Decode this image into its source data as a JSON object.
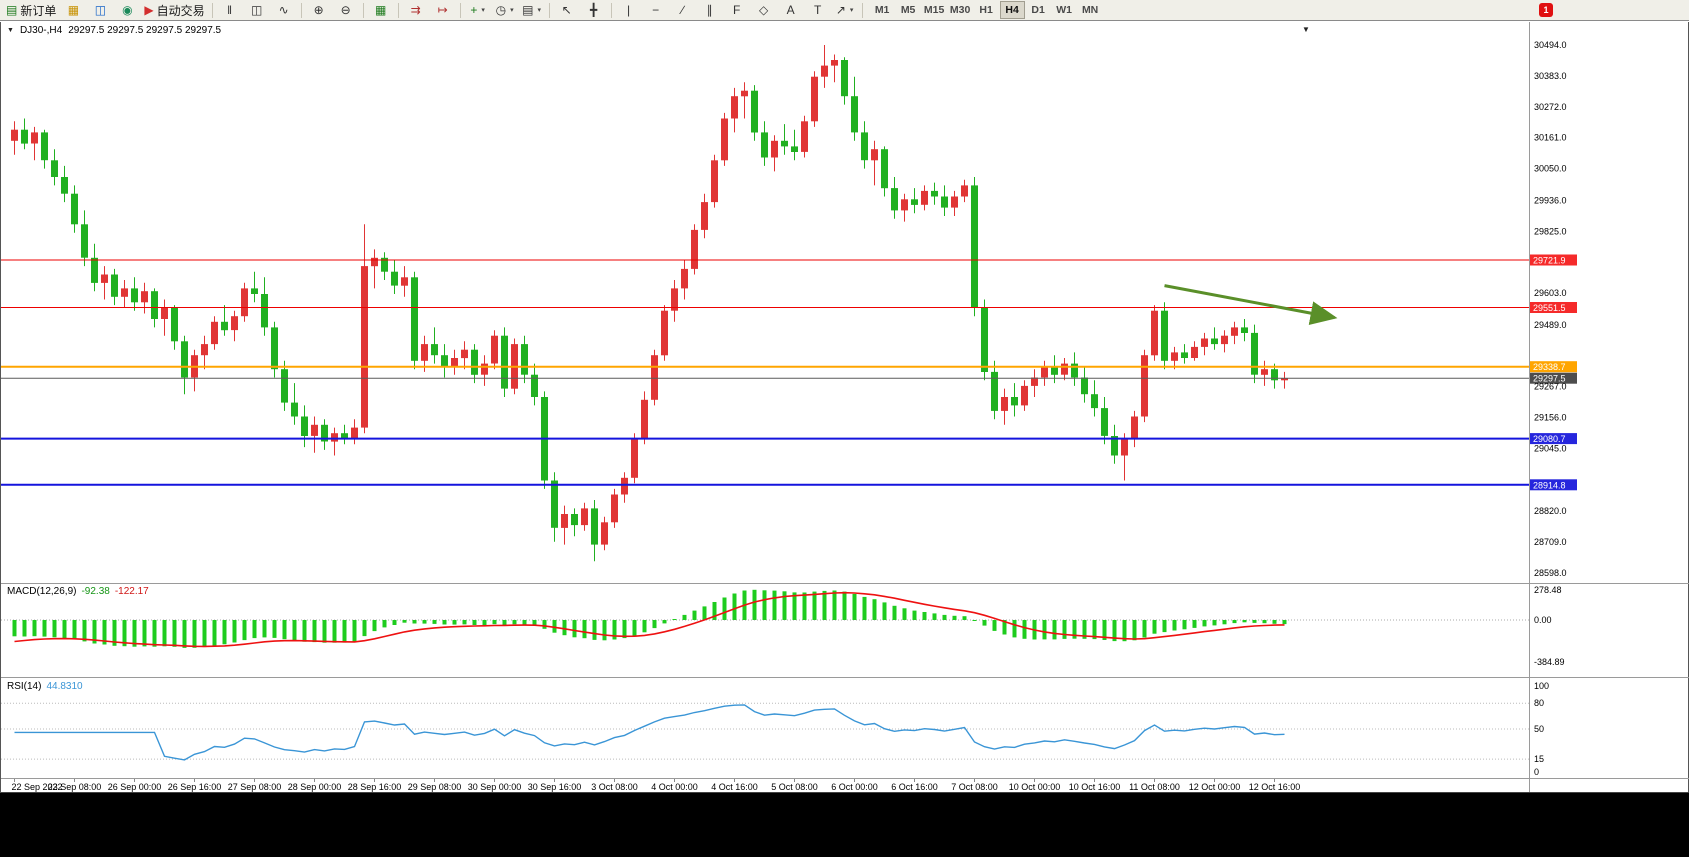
{
  "toolbar": {
    "items": [
      {
        "name": "new-order-button",
        "glyph": "▤",
        "color": "#1b7a1b",
        "label": "新订单"
      },
      {
        "name": "market-depth-icon",
        "glyph": "▦",
        "color": "#c79100"
      },
      {
        "name": "data-window-icon",
        "glyph": "◫",
        "color": "#1663c7"
      },
      {
        "name": "strategy-tester-icon",
        "glyph": "◉",
        "color": "#1b8a5a"
      },
      {
        "name": "auto-trading-button",
        "glyph": "▶",
        "color": "#d32f2f",
        "label": "自动交易"
      },
      {
        "sep": true
      },
      {
        "name": "bar-chart-icon",
        "glyph": "‖",
        "color": "#333333"
      },
      {
        "name": "candlestick-chart-icon",
        "glyph": "◫",
        "color": "#333333"
      },
      {
        "name": "line-chart-icon",
        "glyph": "∿",
        "color": "#333333"
      },
      {
        "sep": true
      },
      {
        "name": "zoom-in-icon",
        "glyph": "⊕",
        "color": "#333333"
      },
      {
        "name": "zoom-out-icon",
        "glyph": "⊖",
        "color": "#333333"
      },
      {
        "sep": true
      },
      {
        "name": "tile-windows-icon",
        "glyph": "▦",
        "color": "#1b7a1b"
      },
      {
        "sep": true
      },
      {
        "name": "auto-scroll-icon",
        "glyph": "⇉",
        "color": "#b03030"
      },
      {
        "name": "chart-shift-icon",
        "glyph": "↦",
        "color": "#b03030"
      },
      {
        "sep": true
      },
      {
        "name": "indicators-icon",
        "glyph": "+",
        "color": "#1b7a1b",
        "caret": true
      },
      {
        "name": "periods-icon",
        "glyph": "◷",
        "color": "#333333",
        "caret": true
      },
      {
        "name": "templates-icon",
        "glyph": "▤",
        "color": "#333333",
        "caret": true
      },
      {
        "sep": true
      },
      {
        "name": "cursor-icon",
        "glyph": "↖",
        "color": "#333333"
      },
      {
        "name": "crosshair-icon",
        "glyph": "╋",
        "color": "#333333"
      },
      {
        "sep": true
      },
      {
        "name": "vertical-line-icon",
        "glyph": "|",
        "color": "#333333"
      },
      {
        "name": "horizontal-line-icon",
        "glyph": "−",
        "color": "#333333"
      },
      {
        "name": "trendline-icon",
        "glyph": "∕",
        "color": "#333333"
      },
      {
        "name": "channel-icon",
        "glyph": "∥",
        "color": "#333333"
      },
      {
        "name": "fibonacci-icon",
        "glyph": "F",
        "color": "#333333"
      },
      {
        "name": "shapes-icon",
        "glyph": "◇",
        "color": "#333333"
      },
      {
        "name": "text-icon",
        "glyph": "A",
        "color": "#333333"
      },
      {
        "name": "text-label-icon",
        "glyph": "T",
        "color": "#333333"
      },
      {
        "name": "arrows-icon",
        "glyph": "↗",
        "color": "#333333",
        "caret": true
      },
      {
        "sep": true
      }
    ],
    "timeframes": [
      "M1",
      "M5",
      "M15",
      "M30",
      "H1",
      "H4",
      "D1",
      "W1",
      "MN"
    ],
    "active_timeframe": "H4",
    "notification_badge": "1"
  },
  "chart_header": {
    "collapse_icon": "▼",
    "menu_icon": "▼",
    "symbol": "DJ30-,H4",
    "quotes": "29297.5 29297.5 29297.5 29297.5"
  },
  "chart_data": {
    "type": "candlestick",
    "symbol": "DJ30-",
    "period": "H4",
    "colors": {
      "bull": "#e03535",
      "bear": "#21b021",
      "background": "#ffffff"
    },
    "price_axis_ticks": [
      {
        "label": "30494.0",
        "value": 30494.0
      },
      {
        "label": "30383.0",
        "value": 30383.0
      },
      {
        "label": "30272.0",
        "value": 30272.0
      },
      {
        "label": "30161.0",
        "value": 30161.0
      },
      {
        "label": "30050.0",
        "value": 30050.0
      },
      {
        "label": "29936.0",
        "value": 29936.0
      },
      {
        "label": "29825.0",
        "value": 29825.0
      },
      {
        "label": "29603.0",
        "value": 29603.0
      },
      {
        "label": "29489.0",
        "value": 29489.0
      },
      {
        "label": "29267.0",
        "value": 29267.0
      },
      {
        "label": "29156.0",
        "value": 29156.0
      },
      {
        "label": "29045.0",
        "value": 29045.0
      },
      {
        "label": "28820.0",
        "value": 28820.0
      },
      {
        "label": "28709.0",
        "value": 28709.0
      },
      {
        "label": "28598.0",
        "value": 28598.0
      }
    ],
    "hlines": [
      {
        "price": 29721.9,
        "label": "29721.9",
        "color": "#ee0000",
        "label_bg": "#f52a2a",
        "width": 1
      },
      {
        "price": 29551.5,
        "label": "29551.5",
        "color": "#ee0000",
        "label_bg": "#f52a2a",
        "width": 1
      },
      {
        "price": 29338.7,
        "label": "29338.7",
        "color": "#ffa500",
        "label_bg": "#ffa500",
        "width": 2
      },
      {
        "price": 29080.7,
        "label": "29080.7",
        "color": "#1414dd",
        "label_bg": "#2626dd",
        "width": 2
      },
      {
        "price": 28914.8,
        "label": "28914.8",
        "color": "#1414dd",
        "label_bg": "#2626dd",
        "width": 2
      }
    ],
    "current_price": {
      "price": 29297.5,
      "label": "29297.5",
      "color": "#5a5a5a",
      "label_bg": "#4d4d4d"
    },
    "trend_arrow": {
      "start_index": 115,
      "start_price": 29630,
      "end_index": 132,
      "end_price": 29515,
      "color": "#5a8f29"
    },
    "candles": [
      [
        30150,
        30220,
        30100,
        30190
      ],
      [
        30190,
        30230,
        30120,
        30140
      ],
      [
        30140,
        30200,
        30080,
        30180
      ],
      [
        30180,
        30190,
        30050,
        30080
      ],
      [
        30080,
        30120,
        29990,
        30020
      ],
      [
        30020,
        30060,
        29930,
        29960
      ],
      [
        29960,
        29990,
        29820,
        29850
      ],
      [
        29850,
        29900,
        29700,
        29730
      ],
      [
        29730,
        29780,
        29610,
        29640
      ],
      [
        29640,
        29700,
        29580,
        29670
      ],
      [
        29670,
        29690,
        29560,
        29590
      ],
      [
        29590,
        29650,
        29550,
        29620
      ],
      [
        29620,
        29660,
        29540,
        29570
      ],
      [
        29570,
        29640,
        29530,
        29610
      ],
      [
        29610,
        29620,
        29480,
        29510
      ],
      [
        29510,
        29580,
        29450,
        29550
      ],
      [
        29550,
        29560,
        29400,
        29430
      ],
      [
        29430,
        29450,
        29240,
        29300
      ],
      [
        29300,
        29400,
        29250,
        29380
      ],
      [
        29380,
        29450,
        29330,
        29420
      ],
      [
        29420,
        29520,
        29400,
        29500
      ],
      [
        29500,
        29560,
        29450,
        29470
      ],
      [
        29470,
        29540,
        29430,
        29520
      ],
      [
        29520,
        29640,
        29500,
        29620
      ],
      [
        29620,
        29680,
        29570,
        29600
      ],
      [
        29600,
        29660,
        29450,
        29480
      ],
      [
        29480,
        29500,
        29300,
        29330
      ],
      [
        29330,
        29360,
        29180,
        29210
      ],
      [
        29210,
        29280,
        29130,
        29160
      ],
      [
        29160,
        29200,
        29050,
        29090
      ],
      [
        29090,
        29160,
        29030,
        29130
      ],
      [
        29130,
        29150,
        29040,
        29070
      ],
      [
        29070,
        29120,
        29020,
        29100
      ],
      [
        29100,
        29130,
        29060,
        29080
      ],
      [
        29080,
        29150,
        29060,
        29120
      ],
      [
        29120,
        29850,
        29100,
        29700
      ],
      [
        29700,
        29760,
        29620,
        29730
      ],
      [
        29730,
        29750,
        29650,
        29680
      ],
      [
        29680,
        29720,
        29600,
        29630
      ],
      [
        29630,
        29700,
        29590,
        29660
      ],
      [
        29660,
        29680,
        29330,
        29360
      ],
      [
        29360,
        29450,
        29320,
        29420
      ],
      [
        29420,
        29480,
        29350,
        29380
      ],
      [
        29380,
        29420,
        29300,
        29340
      ],
      [
        29340,
        29400,
        29310,
        29370
      ],
      [
        29370,
        29430,
        29330,
        29400
      ],
      [
        29400,
        29420,
        29280,
        29310
      ],
      [
        29310,
        29380,
        29270,
        29350
      ],
      [
        29350,
        29470,
        29330,
        29450
      ],
      [
        29450,
        29480,
        29230,
        29260
      ],
      [
        29260,
        29440,
        29240,
        29420
      ],
      [
        29420,
        29450,
        29280,
        29310
      ],
      [
        29310,
        29350,
        29200,
        29230
      ],
      [
        29230,
        29250,
        28900,
        28930
      ],
      [
        28930,
        28960,
        28710,
        28760
      ],
      [
        28760,
        28840,
        28700,
        28810
      ],
      [
        28810,
        28830,
        28730,
        28770
      ],
      [
        28770,
        28850,
        28750,
        28830
      ],
      [
        28830,
        28860,
        28640,
        28700
      ],
      [
        28700,
        28800,
        28680,
        28780
      ],
      [
        28780,
        28900,
        28760,
        28880
      ],
      [
        28880,
        28960,
        28850,
        28940
      ],
      [
        28940,
        29100,
        28920,
        29080
      ],
      [
        29080,
        29250,
        29060,
        29220
      ],
      [
        29220,
        29400,
        29200,
        29380
      ],
      [
        29380,
        29560,
        29360,
        29540
      ],
      [
        29540,
        29650,
        29500,
        29620
      ],
      [
        29620,
        29720,
        29580,
        29690
      ],
      [
        29690,
        29850,
        29670,
        29830
      ],
      [
        29830,
        29960,
        29800,
        29930
      ],
      [
        29930,
        30100,
        29910,
        30080
      ],
      [
        30080,
        30250,
        30060,
        30230
      ],
      [
        30230,
        30340,
        30180,
        30310
      ],
      [
        30310,
        30360,
        30230,
        30330
      ],
      [
        30330,
        30350,
        30150,
        30180
      ],
      [
        30180,
        30220,
        30060,
        30090
      ],
      [
        30090,
        30170,
        30040,
        30150
      ],
      [
        30150,
        30210,
        30100,
        30130
      ],
      [
        30130,
        30190,
        30080,
        30110
      ],
      [
        30110,
        30240,
        30090,
        30220
      ],
      [
        30220,
        30400,
        30200,
        30380
      ],
      [
        30380,
        30494,
        30340,
        30420
      ],
      [
        30420,
        30460,
        30360,
        30440
      ],
      [
        30440,
        30450,
        30280,
        30310
      ],
      [
        30310,
        30380,
        30150,
        30180
      ],
      [
        30180,
        30220,
        30050,
        30080
      ],
      [
        30080,
        30150,
        29990,
        30120
      ],
      [
        30120,
        30130,
        29950,
        29980
      ],
      [
        29980,
        30020,
        29870,
        29900
      ],
      [
        29900,
        29960,
        29860,
        29940
      ],
      [
        29940,
        29980,
        29890,
        29920
      ],
      [
        29920,
        29990,
        29900,
        29970
      ],
      [
        29970,
        30000,
        29920,
        29950
      ],
      [
        29950,
        29990,
        29880,
        29910
      ],
      [
        29910,
        29970,
        29880,
        29950
      ],
      [
        29950,
        30010,
        29930,
        29990
      ],
      [
        29990,
        30020,
        29520,
        29550
      ],
      [
        29550,
        29580,
        29290,
        29320
      ],
      [
        29320,
        29360,
        29150,
        29180
      ],
      [
        29180,
        29260,
        29130,
        29230
      ],
      [
        29230,
        29280,
        29160,
        29200
      ],
      [
        29200,
        29290,
        29180,
        29270
      ],
      [
        29270,
        29330,
        29230,
        29300
      ],
      [
        29300,
        29360,
        29270,
        29340
      ],
      [
        29340,
        29380,
        29280,
        29310
      ],
      [
        29310,
        29370,
        29290,
        29350
      ],
      [
        29350,
        29390,
        29270,
        29300
      ],
      [
        29300,
        29340,
        29210,
        29240
      ],
      [
        29240,
        29290,
        29160,
        29190
      ],
      [
        29190,
        29230,
        29060,
        29090
      ],
      [
        29090,
        29130,
        28990,
        29020
      ],
      [
        29020,
        29100,
        28930,
        29080
      ],
      [
        29080,
        29180,
        29050,
        29160
      ],
      [
        29160,
        29400,
        29140,
        29380
      ],
      [
        29380,
        29560,
        29360,
        29540
      ],
      [
        29540,
        29570,
        29330,
        29360
      ],
      [
        29360,
        29410,
        29330,
        29390
      ],
      [
        29390,
        29420,
        29350,
        29370
      ],
      [
        29370,
        29430,
        29360,
        29410
      ],
      [
        29410,
        29460,
        29380,
        29440
      ],
      [
        29440,
        29480,
        29400,
        29420
      ],
      [
        29420,
        29470,
        29390,
        29450
      ],
      [
        29450,
        29500,
        29420,
        29480
      ],
      [
        29480,
        29510,
        29430,
        29460
      ],
      [
        29460,
        29490,
        29280,
        29310
      ],
      [
        29310,
        29360,
        29270,
        29330
      ],
      [
        29330,
        29350,
        29260,
        29290
      ],
      [
        29290,
        29320,
        29260,
        29297.5
      ]
    ],
    "time_labels": [
      "22 Sep 2022",
      "23 Sep 08:00",
      "26 Sep 00:00",
      "26 Sep 16:00",
      "27 Sep 08:00",
      "28 Sep 00:00",
      "28 Sep 16:00",
      "29 Sep 08:00",
      "30 Sep 00:00",
      "30 Sep 16:00",
      "3 Oct 08:00",
      "4 Oct 00:00",
      "4 Oct 16:00",
      "5 Oct 08:00",
      "6 Oct 00:00",
      "6 Oct 16:00",
      "7 Oct 08:00",
      "10 Oct 00:00",
      "10 Oct 16:00",
      "11 Oct 08:00",
      "12 Oct 00:00",
      "12 Oct 16:00"
    ],
    "macd": {
      "label": "MACD(12,26,9)",
      "main_value": "-92.38",
      "signal_value": "-122.17",
      "axis_ticks": [
        {
          "label": "278.48",
          "value": 278.48
        },
        {
          "label": "0.00",
          "value": 0
        },
        {
          "label": "-384.89",
          "value": -384.89
        }
      ],
      "histogram_color": "#1ecc1e",
      "signal_color": "#ee1111"
    },
    "rsi": {
      "label": "RSI(14)",
      "value": "44.8310",
      "axis_ticks": [
        100,
        80,
        50,
        15,
        0
      ],
      "level_lines": [
        80,
        50,
        15
      ],
      "line_color": "#3a95d6"
    }
  }
}
